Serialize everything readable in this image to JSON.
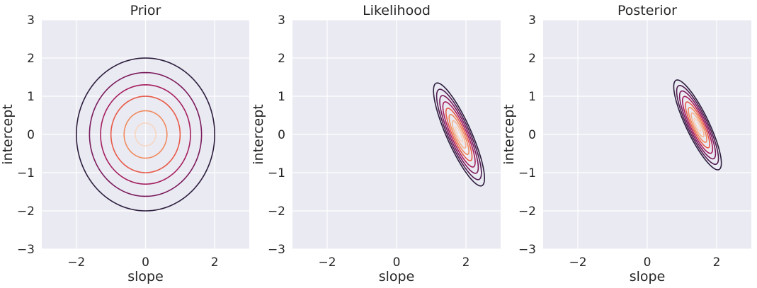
{
  "chart_data": [
    {
      "type": "contour",
      "title": "Prior",
      "xlabel": "slope",
      "ylabel": "intercept",
      "xlim": [
        -3,
        3
      ],
      "ylim": [
        -3,
        3
      ],
      "xticks": [
        -2,
        0,
        2
      ],
      "yticks": [
        -3,
        -2,
        -1,
        0,
        1,
        2,
        3
      ],
      "xtick_labels": [
        "−2",
        "0",
        "2"
      ],
      "ytick_labels": [
        "−3",
        "−2",
        "−1",
        "0",
        "1",
        "2",
        "3"
      ],
      "grid": true,
      "distribution": {
        "center": [
          0,
          0
        ],
        "sigma_x": 1,
        "sigma_y": 1,
        "correlation": 0
      },
      "contour_radii": [
        2.0,
        1.62,
        1.3,
        1.0,
        0.62,
        0.3
      ]
    },
    {
      "type": "contour",
      "title": "Likelihood",
      "xlabel": "slope",
      "ylabel": "intercept",
      "xlim": [
        -3,
        3
      ],
      "ylim": [
        -3,
        3
      ],
      "xticks": [
        -2,
        0,
        2
      ],
      "yticks": [
        -3,
        -2,
        -1,
        0,
        1,
        2,
        3
      ],
      "xtick_labels": [
        "−2",
        "0",
        "2"
      ],
      "ytick_labels": [
        "−3",
        "−2",
        "−1",
        "0",
        "1",
        "2",
        "3"
      ],
      "grid": true,
      "distribution": {
        "center": [
          1.8,
          0.0
        ],
        "sigma_x": 0.3,
        "sigma_y": 0.55,
        "correlation": -0.85
      },
      "contour_radii": [
        2.45,
        2.15,
        1.85,
        1.55,
        1.25,
        0.95,
        0.65,
        0.35
      ]
    },
    {
      "type": "contour",
      "title": "Posterior",
      "xlabel": "slope",
      "ylabel": "intercept",
      "xlim": [
        -3,
        3
      ],
      "ylim": [
        -3,
        3
      ],
      "xticks": [
        -2,
        0,
        2
      ],
      "yticks": [
        -3,
        -2,
        -1,
        0,
        1,
        2,
        3
      ],
      "xtick_labels": [
        "−2",
        "0",
        "2"
      ],
      "ytick_labels": [
        "−3",
        "−2",
        "−1",
        "0",
        "1",
        "2",
        "3"
      ],
      "grid": true,
      "distribution": {
        "center": [
          1.45,
          0.25
        ],
        "sigma_x": 0.28,
        "sigma_y": 0.48,
        "correlation": -0.85
      },
      "contour_radii": [
        2.45,
        2.15,
        1.85,
        1.55,
        1.25,
        0.95,
        0.65,
        0.35
      ]
    }
  ],
  "colormap": [
    "#2d1e3e",
    "#4f1c4f",
    "#7a1b5c",
    "#a51f5f",
    "#cd2f56",
    "#e85a48",
    "#f08a5d",
    "#f5b48f",
    "#f7d6c2"
  ]
}
